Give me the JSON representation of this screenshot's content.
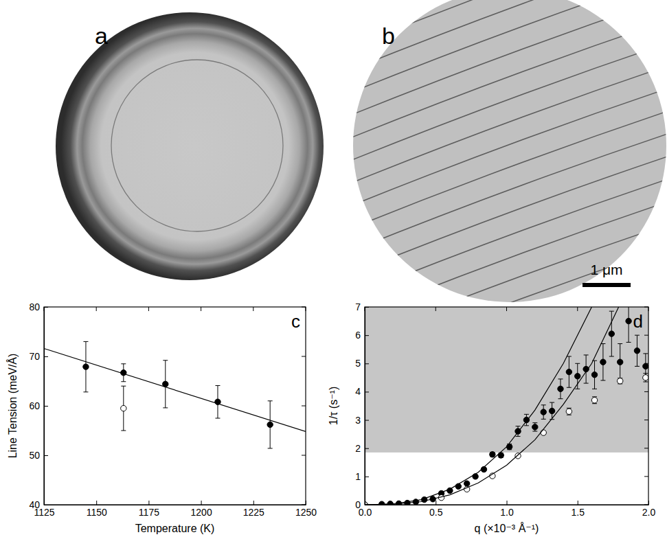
{
  "panels": [
    {
      "label": "a"
    },
    {
      "label": "b",
      "scale_bar": "1 μm"
    }
  ],
  "chart_data": [
    {
      "type": "scatter",
      "panel_label": "c",
      "x_label": "Temperature (K)",
      "y_label": "Line Tension (meV/Å)",
      "xlim": [
        1125,
        1250
      ],
      "xticks": [
        1125,
        1150,
        1175,
        1200,
        1225,
        1250
      ],
      "ylim": [
        40,
        80
      ],
      "yticks": [
        40,
        50,
        60,
        70,
        80
      ],
      "series": [
        {
          "type": "scatter",
          "marker": "filled-circle",
          "color": "#000000",
          "x": [
            1145,
            1163,
            1183,
            1208,
            1233
          ],
          "values": [
            67.9,
            66.7,
            64.4,
            60.8,
            56.2
          ],
          "errors": [
            5.1,
            1.8,
            4.8,
            3.3,
            4.8
          ]
        },
        {
          "type": "scatter",
          "marker": "open-circle",
          "color": "#000000",
          "x": [
            1163
          ],
          "values": [
            59.5
          ],
          "errors": [
            4.5
          ]
        },
        {
          "type": "line",
          "line_style": "solid",
          "color": "#000000",
          "x": [
            1125,
            1250
          ],
          "values": [
            71.6,
            54.8
          ]
        }
      ]
    },
    {
      "type": "scatter",
      "panel_label": "d",
      "x_label": "q (×10⁻³ Å⁻¹)",
      "y_label": "1/τ (s⁻¹)",
      "xlim": [
        0,
        2.0
      ],
      "xticks": [
        {
          "value": 0,
          "label": "0.0"
        },
        {
          "value": 0.5,
          "label": "0.5"
        },
        {
          "value": 1.0,
          "label": "1.0"
        },
        {
          "value": 1.5,
          "label": "1.5"
        },
        {
          "value": 2.0,
          "label": "2.0"
        }
      ],
      "ylim": [
        0,
        7
      ],
      "yticks": [
        0,
        1,
        2,
        3,
        4,
        5,
        6,
        7
      ],
      "shaded_band": {
        "from": 1.85,
        "to": 7
      },
      "series": [
        {
          "type": "scatter",
          "marker": "filled-circle",
          "color": "#000000",
          "x": [
            0,
            0.12,
            0.18,
            0.24,
            0.3,
            0.36,
            0.42,
            0.48,
            0.54,
            0.6,
            0.66,
            0.72,
            0.78,
            0.84,
            0.9,
            0.96,
            1.02,
            1.08,
            1.14,
            1.2,
            1.26,
            1.32,
            1.38,
            1.44,
            1.5,
            1.56,
            1.62,
            1.68,
            1.74,
            1.8,
            1.86,
            1.92,
            1.98
          ],
          "values": [
            0,
            0.02,
            0.03,
            0.04,
            0.06,
            0.1,
            0.18,
            0.2,
            0.4,
            0.5,
            0.65,
            0.75,
            1.0,
            1.25,
            1.78,
            1.75,
            2.05,
            2.6,
            3.0,
            2.75,
            3.28,
            3.32,
            4.1,
            4.7,
            4.55,
            4.8,
            4.6,
            5.05,
            6.05,
            5.05,
            6.5,
            5.45,
            4.9
          ],
          "errors": [
            0,
            0,
            0,
            0,
            0,
            0,
            0,
            0,
            0,
            0,
            0,
            0,
            0.06,
            0.06,
            0.08,
            0.08,
            0.1,
            0.18,
            0.2,
            0.15,
            0.25,
            0.3,
            0.35,
            0.55,
            0.45,
            0.5,
            0.5,
            0.65,
            0.8,
            0.65,
            0.75,
            0.55,
            0.45
          ]
        },
        {
          "type": "scatter",
          "marker": "open-circle",
          "color": "#000000",
          "x": [
            0,
            0.54,
            0.72,
            0.9,
            1.08,
            1.26,
            1.44,
            1.62,
            1.8,
            1.98
          ],
          "values": [
            0,
            0.25,
            0.55,
            1.02,
            1.73,
            2.55,
            3.3,
            3.7,
            4.38,
            4.5
          ],
          "errors": [
            0,
            0,
            0,
            0,
            0,
            0,
            0.12,
            0.12,
            0.1,
            0.15
          ]
        },
        {
          "type": "line",
          "line_style": "solid",
          "color": "#000000",
          "x": [
            0,
            0.2,
            0.4,
            0.6,
            0.8,
            1.0,
            1.2,
            1.4,
            1.6
          ],
          "values": [
            0,
            0.03,
            0.18,
            0.55,
            1.15,
            2.05,
            3.35,
            5.0,
            7.0
          ]
        },
        {
          "type": "line",
          "line_style": "solid",
          "color": "#000000",
          "x": [
            0,
            0.2,
            0.4,
            0.6,
            0.8,
            1.0,
            1.2,
            1.4,
            1.6,
            1.79
          ],
          "values": [
            0,
            0.02,
            0.11,
            0.35,
            0.77,
            1.4,
            2.3,
            3.55,
            5.0,
            7.0
          ]
        }
      ]
    }
  ]
}
